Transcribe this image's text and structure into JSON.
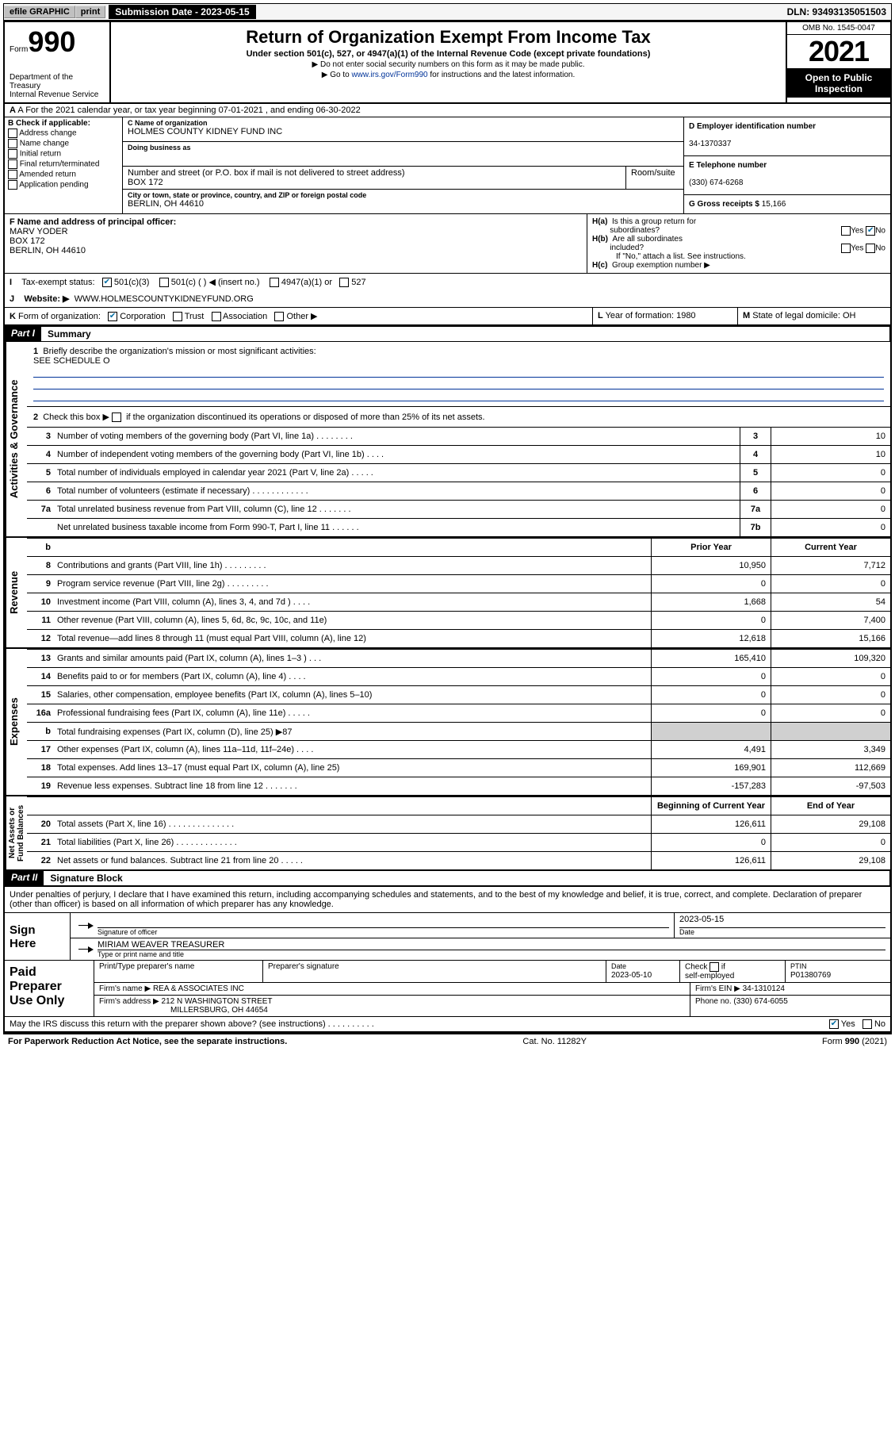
{
  "topbar": {
    "efile": "efile GRAPHIC",
    "print": "print",
    "submission_label": "Submission Date - 2023-05-15",
    "dln": "DLN: 93493135051503"
  },
  "header": {
    "form_word": "Form",
    "form_no": "990",
    "dept": "Department of the Treasury\nInternal Revenue Service",
    "title": "Return of Organization Exempt From Income Tax",
    "subtitle": "Under section 501(c), 527, or 4947(a)(1) of the Internal Revenue Code (except private foundations)",
    "instr1": "▶ Do not enter social security numbers on this form as it may be made public.",
    "instr2_pre": "▶ Go to ",
    "instr2_link": "www.irs.gov/Form990",
    "instr2_post": " for instructions and the latest information.",
    "omb": "OMB No. 1545-0047",
    "year": "2021",
    "open": "Open to Public Inspection"
  },
  "row_a": {
    "text": "A For the 2021 calendar year, or tax year beginning 07-01-2021   , and ending 06-30-2022"
  },
  "box_b": {
    "title": "B Check if applicable:",
    "items": [
      "Address change",
      "Name change",
      "Initial return",
      "Final return/terminated",
      "Amended return",
      "Application pending"
    ]
  },
  "box_c": {
    "label_name": "C Name of organization",
    "name": "HOLMES COUNTY KIDNEY FUND INC",
    "dba_label": "Doing business as",
    "dba": "",
    "addr_label": "Number and street (or P.O. box if mail is not delivered to street address)",
    "room_label": "Room/suite",
    "addr": "BOX 172",
    "city_label": "City or town, state or province, country, and ZIP or foreign postal code",
    "city": "BERLIN, OH  44610"
  },
  "box_d": {
    "label": "D Employer identification number",
    "value": "34-1370337"
  },
  "box_e": {
    "label": "E Telephone number",
    "value": "(330) 674-6268"
  },
  "box_g": {
    "label": "G Gross receipts $",
    "value": "15,166"
  },
  "box_f": {
    "label": "F Name and address of principal officer:",
    "name": "MARV YODER",
    "addr1": "BOX 172",
    "addr2": "BERLIN, OH  44610"
  },
  "box_h": {
    "ha": "H(a)  Is this a group return for subordinates?",
    "hb": "H(b)  Are all subordinates included?",
    "hb_note": "If \"No,\" attach a list. See instructions.",
    "hc": "H(c)  Group exemption number ▶",
    "yes": "Yes",
    "no": "No"
  },
  "row_i": {
    "label": "I    Tax-exempt status:",
    "o501c3": "501(c)(3)",
    "o501c": "501(c) (   ) ◀ (insert no.)",
    "o4947": "4947(a)(1) or",
    "o527": "527"
  },
  "row_j": {
    "label": "J    Website: ▶",
    "value": "WWW.HOLMESCOUNTYKIDNEYFUND.ORG"
  },
  "row_k": {
    "label": "K Form of organization:",
    "corp": "Corporation",
    "trust": "Trust",
    "assoc": "Association",
    "other": "Other ▶"
  },
  "row_l": {
    "label": "L Year of formation:",
    "value": "1980"
  },
  "row_m": {
    "label": "M State of legal domicile:",
    "value": "OH"
  },
  "part1": {
    "tag": "Part I",
    "title": "Summary"
  },
  "sidelabels": {
    "actgov": "Activities & Governance",
    "rev": "Revenue",
    "exp": "Expenses",
    "net": "Net Assets or Fund Balances"
  },
  "summary": {
    "q1": "Briefly describe the organization's mission or most significant activities:",
    "q1_ans": "SEE SCHEDULE O",
    "q2": "Check this box ▶        if the organization discontinued its operations or disposed of more than 25% of its net assets.",
    "rows_ag": [
      {
        "n": "3",
        "d": "Number of voting members of the governing body (Part VI, line 1a)  .   .   .   .   .   .   .   .",
        "b": "3",
        "v": "10"
      },
      {
        "n": "4",
        "d": "Number of independent voting members of the governing body (Part VI, line 1b)  .   .   .   .",
        "b": "4",
        "v": "10"
      },
      {
        "n": "5",
        "d": "Total number of individuals employed in calendar year 2021 (Part V, line 2a)  .   .   .   .   .",
        "b": "5",
        "v": "0"
      },
      {
        "n": "6",
        "d": "Total number of volunteers (estimate if necessary)   .   .   .   .   .   .   .   .   .   .   .   .",
        "b": "6",
        "v": "0"
      },
      {
        "n": "7a",
        "d": "Total unrelated business revenue from Part VIII, column (C), line 12   .   .   .   .   .   .   .",
        "b": "7a",
        "v": "0"
      },
      {
        "n": "",
        "d": "Net unrelated business taxable income from Form 990-T, Part I, line 11   .   .   .   .   .   .",
        "b": "7b",
        "v": "0"
      }
    ],
    "col_prior": "Prior Year",
    "col_curr": "Current Year",
    "rows_rev": [
      {
        "n": "8",
        "d": "Contributions and grants (Part VIII, line 1h)   .   .   .   .   .   .   .   .   .",
        "p": "10,950",
        "c": "7,712"
      },
      {
        "n": "9",
        "d": "Program service revenue (Part VIII, line 2g)   .   .   .   .   .   .   .   .   .",
        "p": "0",
        "c": "0"
      },
      {
        "n": "10",
        "d": "Investment income (Part VIII, column (A), lines 3, 4, and 7d )   .   .   .   .",
        "p": "1,668",
        "c": "54"
      },
      {
        "n": "11",
        "d": "Other revenue (Part VIII, column (A), lines 5, 6d, 8c, 9c, 10c, and 11e)",
        "p": "0",
        "c": "7,400"
      },
      {
        "n": "12",
        "d": "Total revenue—add lines 8 through 11 (must equal Part VIII, column (A), line 12)",
        "p": "12,618",
        "c": "15,166"
      }
    ],
    "rows_exp": [
      {
        "n": "13",
        "d": "Grants and similar amounts paid (Part IX, column (A), lines 1–3 )   .   .   .",
        "p": "165,410",
        "c": "109,320"
      },
      {
        "n": "14",
        "d": "Benefits paid to or for members (Part IX, column (A), line 4)   .   .   .   .",
        "p": "0",
        "c": "0"
      },
      {
        "n": "15",
        "d": "Salaries, other compensation, employee benefits (Part IX, column (A), lines 5–10)",
        "p": "0",
        "c": "0"
      },
      {
        "n": "16a",
        "d": "Professional fundraising fees (Part IX, column (A), line 11e)   .   .   .   .   .",
        "p": "0",
        "c": "0"
      },
      {
        "n": "b",
        "d": "Total fundraising expenses (Part IX, column (D), line 25) ▶87",
        "p": "__GREY__",
        "c": "__GREY__"
      },
      {
        "n": "17",
        "d": "Other expenses (Part IX, column (A), lines 11a–11d, 11f–24e)   .   .   .   .",
        "p": "4,491",
        "c": "3,349"
      },
      {
        "n": "18",
        "d": "Total expenses. Add lines 13–17 (must equal Part IX, column (A), line 25)",
        "p": "169,901",
        "c": "112,669"
      },
      {
        "n": "19",
        "d": "Revenue less expenses. Subtract line 18 from line 12   .   .   .   .   .   .   .",
        "p": "-157,283",
        "c": "-97,503"
      }
    ],
    "col_beg": "Beginning of Current Year",
    "col_end": "End of Year",
    "rows_net": [
      {
        "n": "20",
        "d": "Total assets (Part X, line 16)   .   .   .   .   .   .   .   .   .   .   .   .   .   .",
        "p": "126,611",
        "c": "29,108"
      },
      {
        "n": "21",
        "d": "Total liabilities (Part X, line 26)  .   .   .   .   .   .   .   .   .   .   .   .   .",
        "p": "0",
        "c": "0"
      },
      {
        "n": "22",
        "d": "Net assets or fund balances. Subtract line 21 from line 20   .   .   .   .   .",
        "p": "126,611",
        "c": "29,108"
      }
    ]
  },
  "part2": {
    "tag": "Part II",
    "title": "Signature Block"
  },
  "sig": {
    "decl": "Under penalties of perjury, I declare that I have examined this return, including accompanying schedules and statements, and to the best of my knowledge and belief, it is true, correct, and complete. Declaration of preparer (other than officer) is based on all information of which preparer has any knowledge.",
    "sign_here": "Sign Here",
    "sig_officer": "Signature of officer",
    "date_lbl": "Date",
    "sig_date": "2023-05-15",
    "name_title": "MIRIAM WEAVER  TREASURER",
    "type_lbl": "Type or print name and title",
    "paid": "Paid Preparer Use Only",
    "pt_name_lbl": "Print/Type preparer's name",
    "pt_sig_lbl": "Preparer's signature",
    "pt_date_lbl": "Date",
    "pt_date": "2023-05-10",
    "check_lbl": "Check          if self-employed",
    "ptin_lbl": "PTIN",
    "ptin": "P01380769",
    "firm_name_lbl": "Firm's name    ▶",
    "firm_name": "REA & ASSOCIATES INC",
    "firm_ein_lbl": "Firm's EIN ▶",
    "firm_ein": "34-1310124",
    "firm_addr_lbl": "Firm's address ▶",
    "firm_addr1": "212 N WASHINGTON STREET",
    "firm_addr2": "MILLERSBURG, OH  44654",
    "phone_lbl": "Phone no.",
    "phone": "(330) 674-6055",
    "may_irs": "May the IRS discuss this return with the preparer shown above? (see instructions)   .   .   .   .   .   .   .   .   .   .",
    "yes": "Yes",
    "no": "No"
  },
  "footer": {
    "left": "For Paperwork Reduction Act Notice, see the separate instructions.",
    "mid": "Cat. No. 11282Y",
    "right": "Form 990 (2021)"
  },
  "colors": {
    "blue_check": "#006da3",
    "link_blue": "#003399",
    "grey_cell": "#d0d0d0"
  }
}
